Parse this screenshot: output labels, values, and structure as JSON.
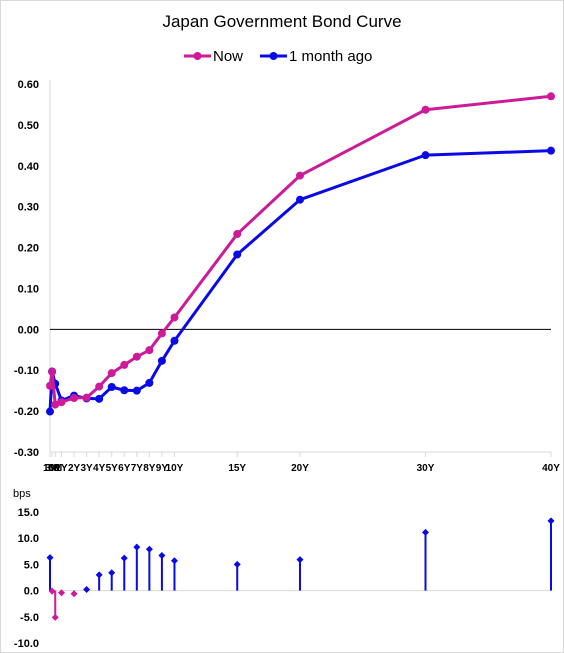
{
  "chart_data": [
    {
      "type": "line",
      "title": "Japan Government Bond Curve",
      "xlabel": "",
      "ylabel": "",
      "categories": [
        "1M",
        "3M",
        "6M",
        "1Y",
        "2Y",
        "3Y",
        "4Y",
        "5Y",
        "6Y",
        "7Y",
        "8Y",
        "9Y",
        "10Y",
        "15Y",
        "20Y",
        "30Y",
        "40Y"
      ],
      "x_years": [
        0.083,
        0.25,
        0.5,
        1,
        2,
        3,
        4,
        5,
        6,
        7,
        8,
        9,
        10,
        15,
        20,
        30,
        40
      ],
      "x_tick_labels": [
        "1M",
        "3M",
        "6M",
        "1Y",
        "2Y",
        "3Y",
        "4Y",
        "5Y",
        "6Y",
        "7Y",
        "8Y",
        "9Y",
        "10Y",
        "15Y",
        "20Y",
        "30Y",
        "40Y"
      ],
      "ylim": [
        -0.3,
        0.6
      ],
      "yticks": [
        "-0.30",
        "-0.20",
        "-0.10",
        "0.00",
        "0.10",
        "0.20",
        "0.30",
        "0.40",
        "0.50",
        "0.60"
      ],
      "ytick_values": [
        -0.3,
        -0.2,
        -0.1,
        0,
        0.1,
        0.2,
        0.3,
        0.4,
        0.5,
        0.6
      ],
      "grid": false,
      "legend_position": "top",
      "series": [
        {
          "name": "Now",
          "color": "#cc1a99",
          "values": [
            -0.138,
            -0.104,
            -0.184,
            -0.178,
            -0.168,
            -0.167,
            -0.14,
            -0.107,
            -0.087,
            -0.067,
            -0.051,
            -0.01,
            0.029,
            0.233,
            0.376,
            0.537,
            0.57
          ]
        },
        {
          "name": "1 month ago",
          "color": "#0a0ae6",
          "values": [
            -0.201,
            -0.103,
            -0.133,
            -0.174,
            -0.162,
            -0.169,
            -0.17,
            -0.141,
            -0.149,
            -0.15,
            -0.131,
            -0.077,
            -0.028,
            0.183,
            0.317,
            0.426,
            0.437
          ]
        }
      ]
    },
    {
      "type": "bar",
      "title": "",
      "ylabel": "bps",
      "ylim": [
        -10.0,
        15.0
      ],
      "yticks": [
        "-10.0",
        "-5.0",
        "0.0",
        "5.0",
        "10.0",
        "15.0"
      ],
      "ytick_values": [
        -10,
        -5,
        0,
        5,
        10,
        15
      ],
      "categories": [
        "1M",
        "3M",
        "6M",
        "1Y",
        "2Y",
        "3Y",
        "4Y",
        "5Y",
        "6Y",
        "7Y",
        "8Y",
        "9Y",
        "10Y",
        "15Y",
        "20Y",
        "30Y",
        "40Y"
      ],
      "values": [
        6.3,
        -0.1,
        -5.1,
        -0.4,
        -0.6,
        0.2,
        3.0,
        3.4,
        6.2,
        8.3,
        7.9,
        6.7,
        5.7,
        5.0,
        5.9,
        11.1,
        13.3
      ],
      "positive_color": "#0a0ae6",
      "negative_color": "#cc1a99"
    }
  ]
}
